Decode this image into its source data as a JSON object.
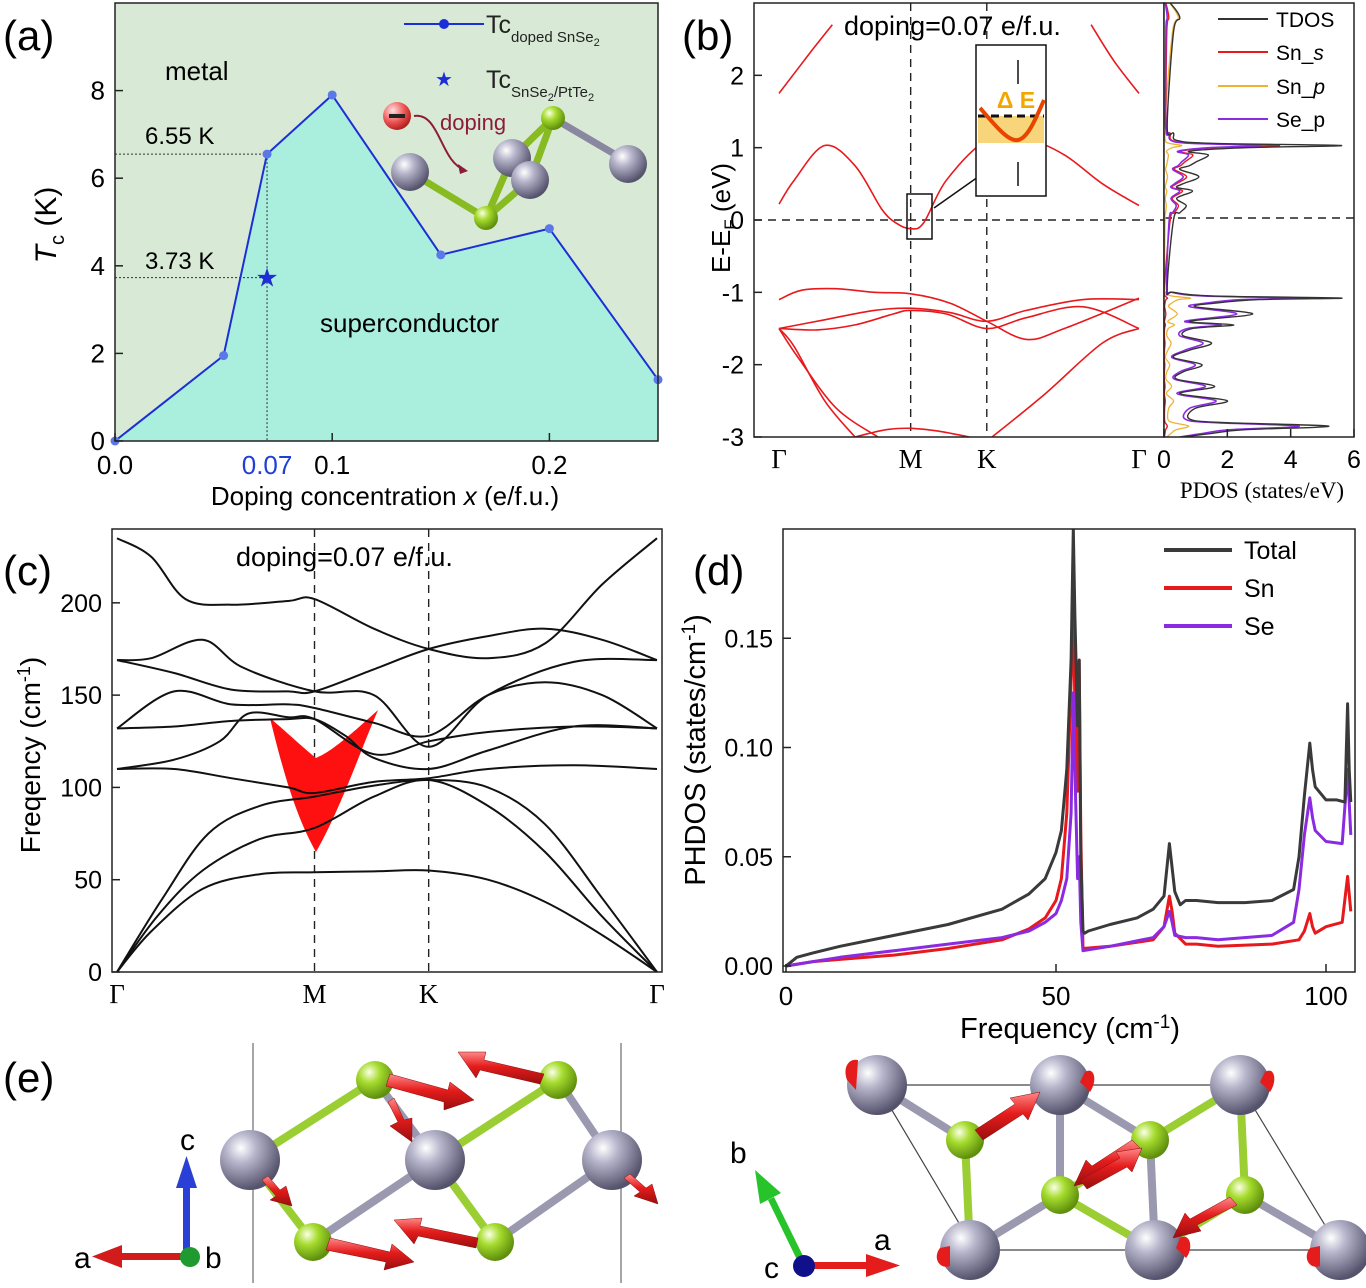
{
  "panels": {
    "a": {
      "label": "(a)"
    },
    "b": {
      "label": "(b)"
    },
    "c": {
      "label": "(c)"
    },
    "d": {
      "label": "(d)"
    },
    "e": {
      "label": "(e)"
    }
  },
  "chart_data": [
    {
      "id": "a",
      "type": "line",
      "title": "",
      "xlabel": "Doping concentration x (e/f.u.)",
      "ylabel": "Tc (K)",
      "xlim": [
        0,
        0.25
      ],
      "ylim": [
        0,
        10
      ],
      "xticks": [
        0.0,
        0.1,
        0.2
      ],
      "xtick_labels": [
        "0.0",
        "0.1",
        "0.2"
      ],
      "highlight_tick": {
        "value": 0.07,
        "label": "0.07",
        "color": "#1f3fd6"
      },
      "yticks": [
        0,
        2,
        4,
        6,
        8
      ],
      "ytick_labels": [
        "0",
        "2",
        "4",
        "6",
        "8"
      ],
      "series": [
        {
          "name": "Tc doped SnSe2",
          "x": [
            0.0,
            0.05,
            0.07,
            0.1,
            0.15,
            0.2,
            0.25
          ],
          "y": [
            0.0,
            1.95,
            6.55,
            7.9,
            4.25,
            4.85,
            1.4
          ]
        }
      ],
      "star_point": {
        "name": "Tc SnSe2/PtTe2",
        "x": 0.07,
        "y": 3.73
      },
      "annotations": {
        "t655": "6.55 K",
        "t373": "3.73 K",
        "metal": "metal",
        "superconductor": "superconductor",
        "doping": "doping"
      },
      "legend": {
        "doped_main": "Tc",
        "doped_sub": "doped SnSe",
        "doped_sub2": "2",
        "star_main": "Tc",
        "star_sub": "SnSe",
        "star_sub2": "2",
        "star_sub3": "/PtTe",
        "star_sub4": "2"
      },
      "colors": {
        "metal_bg": "#d8ead5",
        "sc_fill": "#aaeedd",
        "line": "#1c2fd6",
        "marker": "#5b78e8"
      }
    },
    {
      "id": "b",
      "type": "line",
      "title": "doping=0.07 e/f.u.",
      "ylabel": "E-E_F (eV)",
      "ylim": [
        -3,
        3
      ],
      "yticks": [
        -3,
        -2,
        -1,
        0,
        1,
        2
      ],
      "ytick_labels": [
        "-3",
        "-2",
        "-1",
        "0",
        "1",
        "2"
      ],
      "kpath": [
        "Γ",
        "M",
        "K",
        "Γ"
      ],
      "kpos": [
        0,
        0.346,
        0.546,
        0.946
      ],
      "bands": [
        {
          "x": [
            0,
            0.08,
            0.14
          ],
          "y": [
            1.75,
            2.3,
            2.7
          ]
        },
        {
          "x": [
            0,
            0.04,
            0.12,
            0.2,
            0.27,
            0.31,
            0.346,
            0.38,
            0.44,
            0.546,
            0.65,
            0.75,
            0.85,
            0.946
          ],
          "y": [
            0.22,
            0.55,
            1.03,
            0.75,
            0.15,
            -0.05,
            -0.12,
            -0.04,
            0.55,
            1.1,
            1.12,
            0.9,
            0.5,
            0.2
          ]
        },
        {
          "x": [
            0.82,
            0.88,
            0.946
          ],
          "y": [
            2.7,
            2.2,
            1.75
          ]
        },
        {
          "x": [
            0,
            0.06,
            0.15,
            0.25,
            0.346,
            0.45,
            0.546,
            0.65,
            0.75,
            0.946
          ],
          "y": [
            -1.1,
            -0.97,
            -0.95,
            -1.0,
            -1.02,
            -1.15,
            -1.4,
            -1.65,
            -1.5,
            -1.08
          ]
        },
        {
          "x": [
            0,
            0.12,
            0.25,
            0.346,
            0.45,
            0.546,
            0.65,
            0.8,
            0.946
          ],
          "y": [
            -1.5,
            -1.38,
            -1.25,
            -1.22,
            -1.28,
            -1.4,
            -1.25,
            -1.1,
            -1.1
          ]
        },
        {
          "x": [
            0,
            0.1,
            0.2,
            0.3,
            0.346,
            0.44,
            0.546,
            0.65,
            0.8,
            0.946
          ],
          "y": [
            -1.5,
            -1.52,
            -1.45,
            -1.3,
            -1.25,
            -1.3,
            -1.5,
            -1.35,
            -1.2,
            -1.5
          ]
        },
        {
          "x": [
            0,
            0.04,
            0.12,
            0.2
          ],
          "y": [
            -1.5,
            -1.75,
            -2.5,
            -3.0
          ]
        },
        {
          "x": [
            0,
            0.05,
            0.15,
            0.26
          ],
          "y": [
            -1.5,
            -1.9,
            -2.6,
            -3.0
          ]
        },
        {
          "x": [
            0.2,
            0.28,
            0.346,
            0.42,
            0.5
          ],
          "y": [
            -3.0,
            -2.9,
            -2.88,
            -2.92,
            -3.0
          ]
        },
        {
          "x": [
            0.56,
            0.7,
            0.85,
            0.946
          ],
          "y": [
            -3.0,
            -2.4,
            -1.7,
            -1.5
          ]
        }
      ],
      "inset_label": "Δ E",
      "pdos": {
        "xlabel": "PDOS (states/eV)",
        "xlim": [
          0,
          6
        ],
        "xticks": [
          0,
          2,
          4,
          6
        ],
        "xtick_labels": [
          "0",
          "2",
          "4",
          "6"
        ],
        "series": [
          {
            "name": "TDOS",
            "color": "#333333"
          },
          {
            "name": "Sn_s",
            "color": "#e8191c"
          },
          {
            "name": "Sn_p",
            "color": "#eeb22f"
          },
          {
            "name": "Se_p",
            "color": "#8a2be2"
          }
        ],
        "legend": {
          "tdos": "TDOS",
          "sns_a": "Sn_",
          "sns_b": "s",
          "snp_a": "Sn_",
          "snp_b": "p",
          "sep": "Se_p"
        },
        "tdos_e": [
          -3,
          -2.95,
          -2.9,
          -2.85,
          -2.8,
          -2.75,
          -2.6,
          -2.5,
          -2.4,
          -2.3,
          -2.2,
          -2.1,
          -2.0,
          -1.9,
          -1.8,
          -1.7,
          -1.6,
          -1.5,
          -1.45,
          -1.4,
          -1.3,
          -1.2,
          -1.15,
          -1.1,
          -1.08,
          -1.05,
          -1.0,
          -0.95,
          0.0,
          0.1,
          0.2,
          0.3,
          0.4,
          0.45,
          0.5,
          0.6,
          0.7,
          0.75,
          0.8,
          0.9,
          0.95,
          1.0,
          1.03,
          1.06,
          1.1,
          1.2,
          1.3,
          2.6,
          2.8,
          3.0
        ],
        "tdos_v": [
          0.6,
          1.5,
          2.5,
          5.2,
          1.8,
          0.8,
          1.0,
          2.0,
          0.5,
          1.6,
          0.4,
          0.6,
          1.2,
          0.3,
          0.8,
          1.5,
          0.6,
          0.9,
          2.2,
          0.8,
          2.8,
          1.0,
          1.6,
          3.0,
          5.6,
          1.5,
          0.3,
          0.1,
          0.3,
          0.5,
          0.7,
          0.4,
          0.9,
          0.4,
          0.6,
          1.1,
          0.5,
          0.8,
          1.0,
          1.4,
          0.8,
          2.6,
          5.6,
          1.5,
          0.4,
          0.3,
          0.1,
          0.3,
          0.5,
          0.2
        ]
      }
    },
    {
      "id": "c",
      "type": "line",
      "title": "doping=0.07 e/f.u.",
      "ylabel": "Freqency (cm-1)",
      "ylim": [
        0,
        240
      ],
      "yticks": [
        0,
        50,
        100,
        150,
        200
      ],
      "ytick_labels": [
        "0",
        "50",
        "100",
        "150",
        "200"
      ],
      "kpath": [
        "Γ",
        "M",
        "K",
        "Γ"
      ],
      "kpos": [
        0,
        0.346,
        0.546,
        0.946
      ],
      "branches": [
        {
          "x": [
            0,
            0.06,
            0.15,
            0.25,
            0.346,
            0.45,
            0.546,
            0.65,
            0.75,
            0.85,
            0.946
          ],
          "y": [
            0,
            22,
            45,
            53,
            54,
            54.5,
            55,
            50,
            38,
            20,
            0
          ]
        },
        {
          "x": [
            0,
            0.07,
            0.15,
            0.25,
            0.346,
            0.45,
            0.546,
            0.65,
            0.75,
            0.85,
            0.946
          ],
          "y": [
            0,
            30,
            55,
            72,
            78,
            95,
            104,
            90,
            65,
            30,
            0
          ]
        },
        {
          "x": [
            0,
            0.08,
            0.16,
            0.25,
            0.346,
            0.45,
            0.546,
            0.65,
            0.75,
            0.85,
            0.946
          ],
          "y": [
            0,
            40,
            75,
            90,
            95,
            101,
            104,
            100,
            80,
            40,
            0
          ]
        },
        {
          "x": [
            0,
            0.1,
            0.2,
            0.3,
            0.346,
            0.45,
            0.546,
            0.65,
            0.8,
            0.946
          ],
          "y": [
            110,
            110,
            105,
            100,
            97,
            103,
            105,
            110,
            112,
            110
          ]
        },
        {
          "x": [
            0,
            0.1,
            0.18,
            0.23,
            0.3,
            0.346,
            0.45,
            0.546,
            0.65,
            0.8,
            0.946
          ],
          "y": [
            110,
            115,
            125,
            140,
            138,
            137,
            118,
            125,
            130,
            133,
            132
          ]
        },
        {
          "x": [
            0,
            0.1,
            0.2,
            0.3,
            0.346,
            0.4,
            0.45,
            0.546,
            0.65,
            0.8,
            0.946
          ],
          "y": [
            132,
            133,
            136,
            137,
            137,
            128,
            116,
            110,
            120,
            133,
            132
          ]
        },
        {
          "x": [
            0,
            0.1,
            0.2,
            0.3,
            0.346,
            0.45,
            0.546,
            0.65,
            0.75,
            0.85,
            0.946
          ],
          "y": [
            132,
            152,
            145,
            145,
            143,
            135,
            128,
            150,
            157,
            150,
            132
          ]
        },
        {
          "x": [
            0,
            0.06,
            0.15,
            0.22,
            0.346,
            0.45,
            0.546,
            0.65,
            0.8,
            0.946
          ],
          "y": [
            169,
            170,
            180,
            165,
            152,
            150,
            122,
            150,
            168,
            169
          ]
        },
        {
          "x": [
            0,
            0.1,
            0.2,
            0.3,
            0.346,
            0.45,
            0.546,
            0.65,
            0.75,
            0.85,
            0.946
          ],
          "y": [
            169,
            162,
            153,
            152,
            152,
            164,
            175,
            182,
            186,
            180,
            169
          ]
        },
        {
          "x": [
            0,
            0.06,
            0.12,
            0.2,
            0.3,
            0.346,
            0.45,
            0.546,
            0.65,
            0.75,
            0.85,
            0.946
          ],
          "y": [
            235,
            225,
            202,
            199,
            201,
            202,
            186,
            175,
            170,
            178,
            210,
            235
          ]
        }
      ]
    },
    {
      "id": "d",
      "type": "line",
      "xlabel": "Frequency (cm-1)",
      "ylabel": "PHDOS (states/cm-1)",
      "xlim": [
        0,
        105
      ],
      "ylim": [
        0,
        0.2
      ],
      "xticks": [
        0,
        50,
        100
      ],
      "xtick_labels": [
        "0",
        "50",
        "100"
      ],
      "yticks": [
        0,
        0.05,
        0.1,
        0.15
      ],
      "ytick_labels": [
        "0.00",
        "0.05",
        "0.10",
        "0.15"
      ],
      "series": [
        {
          "name": "Total",
          "color": "#3a3a3a",
          "x": [
            0,
            2,
            5,
            10,
            20,
            30,
            40,
            45,
            48,
            50,
            51,
            52,
            52.8,
            53.2,
            53.5,
            54,
            54.3,
            54.6,
            55,
            55.3,
            56,
            60,
            65,
            68,
            70,
            71,
            71.5,
            72,
            73,
            74,
            76,
            80,
            85,
            90,
            94,
            95,
            96,
            97,
            97.5,
            98,
            100,
            102,
            103.5,
            104,
            104.3,
            104.6
          ],
          "y": [
            0.0,
            0.004,
            0.006,
            0.009,
            0.014,
            0.019,
            0.026,
            0.033,
            0.04,
            0.052,
            0.062,
            0.09,
            0.14,
            0.2,
            0.16,
            0.11,
            0.14,
            0.05,
            0.016,
            0.015,
            0.016,
            0.019,
            0.022,
            0.026,
            0.032,
            0.056,
            0.045,
            0.034,
            0.028,
            0.03,
            0.03,
            0.029,
            0.029,
            0.03,
            0.035,
            0.05,
            0.078,
            0.102,
            0.09,
            0.082,
            0.076,
            0.076,
            0.075,
            0.12,
            0.09,
            0.075
          ]
        },
        {
          "name": "Sn",
          "color": "#e8191c",
          "x": [
            0,
            5,
            10,
            20,
            30,
            40,
            45,
            48,
            50,
            51,
            52,
            52.8,
            53.2,
            53.5,
            54,
            54.3,
            54.6,
            55,
            60,
            68,
            70,
            71,
            71.5,
            72,
            74,
            76,
            80,
            90,
            95,
            96,
            97,
            97.5,
            98,
            100,
            103,
            104,
            104.6
          ],
          "y": [
            0.0,
            0.002,
            0.003,
            0.005,
            0.008,
            0.012,
            0.017,
            0.022,
            0.03,
            0.04,
            0.07,
            0.13,
            0.16,
            0.12,
            0.08,
            0.14,
            0.06,
            0.008,
            0.009,
            0.012,
            0.018,
            0.032,
            0.025,
            0.015,
            0.01,
            0.01,
            0.009,
            0.01,
            0.012,
            0.016,
            0.024,
            0.018,
            0.015,
            0.018,
            0.02,
            0.041,
            0.025
          ]
        },
        {
          "name": "Se",
          "color": "#8a2be2",
          "x": [
            0,
            5,
            10,
            20,
            30,
            40,
            45,
            48,
            50,
            51,
            52,
            52.8,
            53.2,
            53.5,
            54,
            54.3,
            54.6,
            55,
            60,
            68,
            70,
            71,
            71.5,
            72,
            74,
            76,
            80,
            90,
            94,
            95,
            96,
            97,
            97.5,
            98,
            100,
            103,
            104,
            104.6
          ],
          "y": [
            0.0,
            0.002,
            0.004,
            0.007,
            0.01,
            0.013,
            0.016,
            0.02,
            0.024,
            0.03,
            0.04,
            0.07,
            0.125,
            0.09,
            0.04,
            0.05,
            0.02,
            0.007,
            0.009,
            0.013,
            0.018,
            0.025,
            0.02,
            0.014,
            0.013,
            0.013,
            0.012,
            0.014,
            0.02,
            0.035,
            0.06,
            0.077,
            0.068,
            0.062,
            0.057,
            0.056,
            0.09,
            0.06
          ]
        }
      ]
    },
    {
      "id": "e",
      "type": "other",
      "description_axes": {
        "left": [
          "a",
          "b",
          "c"
        ],
        "right": [
          "a",
          "b",
          "c"
        ]
      }
    }
  ]
}
